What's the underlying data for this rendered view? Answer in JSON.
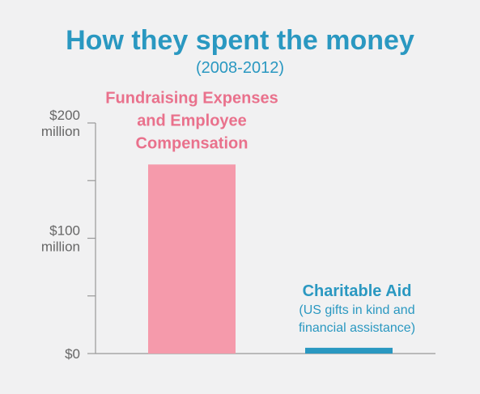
{
  "chart_data": {
    "type": "bar",
    "title": "How they spent the money",
    "subtitle": "(2008-2012)",
    "ylim": [
      0,
      200
    ],
    "y_ticks": [
      {
        "value": 200,
        "lines": [
          "$200",
          "million"
        ]
      },
      {
        "value": 100,
        "lines": [
          "$100",
          "million"
        ]
      },
      {
        "value": 0,
        "lines": [
          "$0"
        ]
      }
    ],
    "y_minor_ticks": [
      150,
      50
    ],
    "categories": [
      {
        "name_lines": [
          "Fundraising Expenses",
          "and Employee",
          "Compensation"
        ],
        "sub_lines": [],
        "value": 164,
        "color": "#f59aab",
        "label_color": "#e9718c"
      },
      {
        "name_lines": [
          "Charitable Aid"
        ],
        "sub_lines": [
          "(US gifts in kind and",
          "financial assistance)"
        ],
        "value": 5,
        "color": "#2a98c1",
        "label_color": "#2a98c1"
      }
    ],
    "colors": {
      "title": "#2a98c1",
      "axis": "#999999",
      "background": "#f1f1f2"
    }
  }
}
